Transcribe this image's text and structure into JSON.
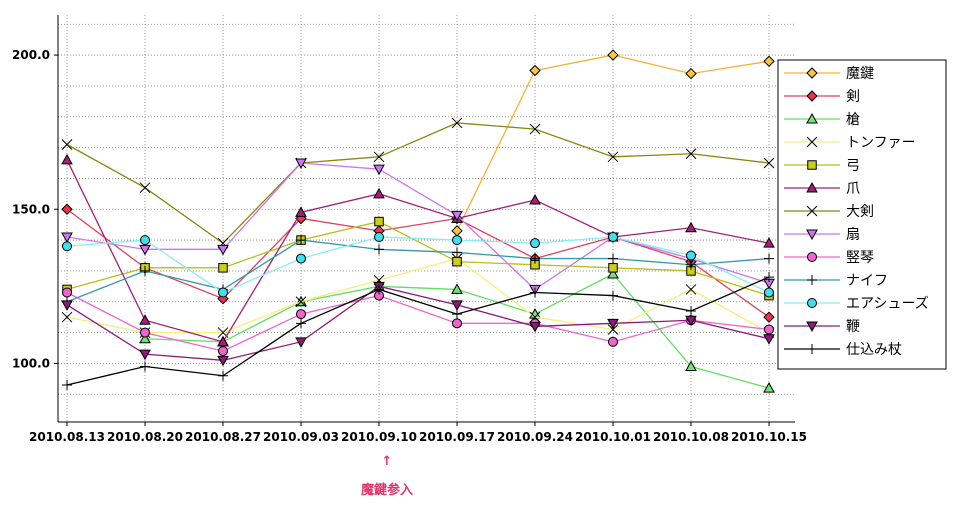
{
  "chart_data": {
    "type": "line",
    "title": "",
    "xlabel": "",
    "ylabel": "",
    "x": [
      "2010.08.13",
      "2010.08.20",
      "2010.08.27",
      "2010.09.03",
      "2010.09.10",
      "2010.09.17",
      "2010.09.24",
      "2010.10.01",
      "2010.10.08",
      "2010.10.15"
    ],
    "y_ticks": [
      "100.0",
      "150.0",
      "200.0"
    ],
    "ylim": [
      81,
      213
    ],
    "grid": true,
    "legend_position": "right",
    "series": [
      {
        "name": "魔鍵",
        "marker": "diamond",
        "color": "#f4b43c",
        "fill": "#f9c44a",
        "values": [
          null,
          null,
          null,
          null,
          null,
          143,
          195,
          200,
          194,
          198
        ]
      },
      {
        "name": "剣",
        "marker": "diamond",
        "color": "#e0405c",
        "fill": "#e8334f",
        "values": [
          150,
          131,
          121,
          147,
          143,
          147,
          134,
          141,
          133,
          115
        ]
      },
      {
        "name": "槍",
        "marker": "triangle-up",
        "color": "#66dd66",
        "fill": "#77e077",
        "values": [
          null,
          108,
          107,
          120,
          125,
          124,
          116,
          129,
          99,
          92
        ]
      },
      {
        "name": "トンファー",
        "marker": "x",
        "color": "#f4f078",
        "fill": "none",
        "values": [
          115,
          110,
          110,
          120,
          127,
          134,
          115,
          111,
          124,
          110
        ]
      },
      {
        "name": "弓",
        "marker": "square",
        "color": "#bcbc1a",
        "fill": "#cccc22",
        "values": [
          124,
          131,
          131,
          140,
          146,
          133,
          132,
          131,
          130,
          122
        ]
      },
      {
        "name": "爪",
        "marker": "triangle-up",
        "color": "#a0207a",
        "fill": "#a0207a",
        "values": [
          166,
          114,
          107,
          149,
          155,
          147,
          153,
          141,
          144,
          139
        ]
      },
      {
        "name": "大剣",
        "marker": "x",
        "color": "#8b8610",
        "fill": "none",
        "values": [
          171,
          157,
          139,
          165,
          167,
          178,
          176,
          167,
          168,
          165
        ]
      },
      {
        "name": "扇",
        "marker": "triangle-down",
        "color": "#cc77ee",
        "fill": "#cc77ee",
        "values": [
          141,
          137,
          137,
          165,
          163,
          148,
          124,
          141,
          134,
          126
        ]
      },
      {
        "name": "竪琴",
        "marker": "circle",
        "color": "#ee66cc",
        "fill": "#ee66cc",
        "values": [
          123,
          110,
          104,
          116,
          122,
          113,
          113,
          107,
          114,
          111
        ]
      },
      {
        "name": "ナイフ",
        "marker": "plus",
        "color": "#3399aa",
        "fill": "none",
        "values": [
          120,
          130,
          124,
          140,
          137,
          136,
          134,
          134,
          132,
          134
        ]
      },
      {
        "name": "エアシューズ",
        "marker": "circle",
        "color": "#88eeee",
        "fill": "#44ddee",
        "values": [
          138,
          140,
          123,
          134,
          141,
          140,
          139,
          141,
          135,
          123
        ]
      },
      {
        "name": "鞭",
        "marker": "triangle-down",
        "color": "#8b1a7a",
        "fill": "#8b1a7a",
        "values": [
          119,
          103,
          101,
          107,
          125,
          119,
          112,
          113,
          114,
          108
        ]
      },
      {
        "name": "仕込み杖",
        "marker": "plus",
        "color": "#000000",
        "fill": "none",
        "values": [
          93,
          99,
          96,
          113,
          124,
          116,
          123,
          122,
          117,
          128
        ]
      }
    ],
    "annotation": {
      "text": "魔鍵参入",
      "arrow": "↑",
      "x": "2010.09.10"
    }
  }
}
